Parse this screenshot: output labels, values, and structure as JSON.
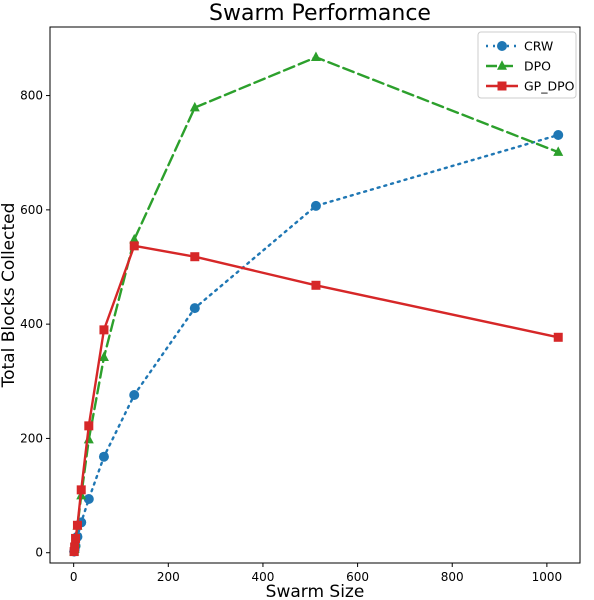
{
  "chart_data": {
    "type": "line",
    "title": "Swarm Performance",
    "xlabel": "Swarm Size",
    "ylabel": "Total Blocks Collected",
    "xlim": [
      -50,
      1070
    ],
    "ylim": [
      -18,
      920
    ],
    "xticks": [
      0,
      200,
      400,
      600,
      800,
      1000
    ],
    "yticks": [
      0,
      200,
      400,
      600,
      800
    ],
    "grid": false,
    "legend_position": "top-right",
    "series": [
      {
        "name": "CRW",
        "color": "#1f77b4",
        "line_style": "dotted",
        "marker": "circle",
        "x": [
          1,
          2,
          4,
          8,
          16,
          32,
          64,
          128,
          256,
          512,
          1024
        ],
        "y": [
          2,
          5,
          12,
          28,
          53,
          94,
          168,
          276,
          428,
          607,
          731
        ]
      },
      {
        "name": "DPO",
        "color": "#2ca02c",
        "line_style": "dashed",
        "marker": "triangle",
        "x": [
          1,
          2,
          4,
          8,
          16,
          32,
          64,
          128,
          256,
          512,
          1024
        ],
        "y": [
          2,
          6,
          17,
          47,
          100,
          198,
          342,
          548,
          779,
          867,
          701
        ]
      },
      {
        "name": "GP_DPO",
        "color": "#d62728",
        "line_style": "solid",
        "marker": "square",
        "x": [
          1,
          2,
          4,
          8,
          16,
          32,
          64,
          128,
          256,
          512,
          1024
        ],
        "y": [
          2,
          10,
          25,
          48,
          110,
          222,
          390,
          537,
          518,
          468,
          377
        ]
      }
    ]
  }
}
